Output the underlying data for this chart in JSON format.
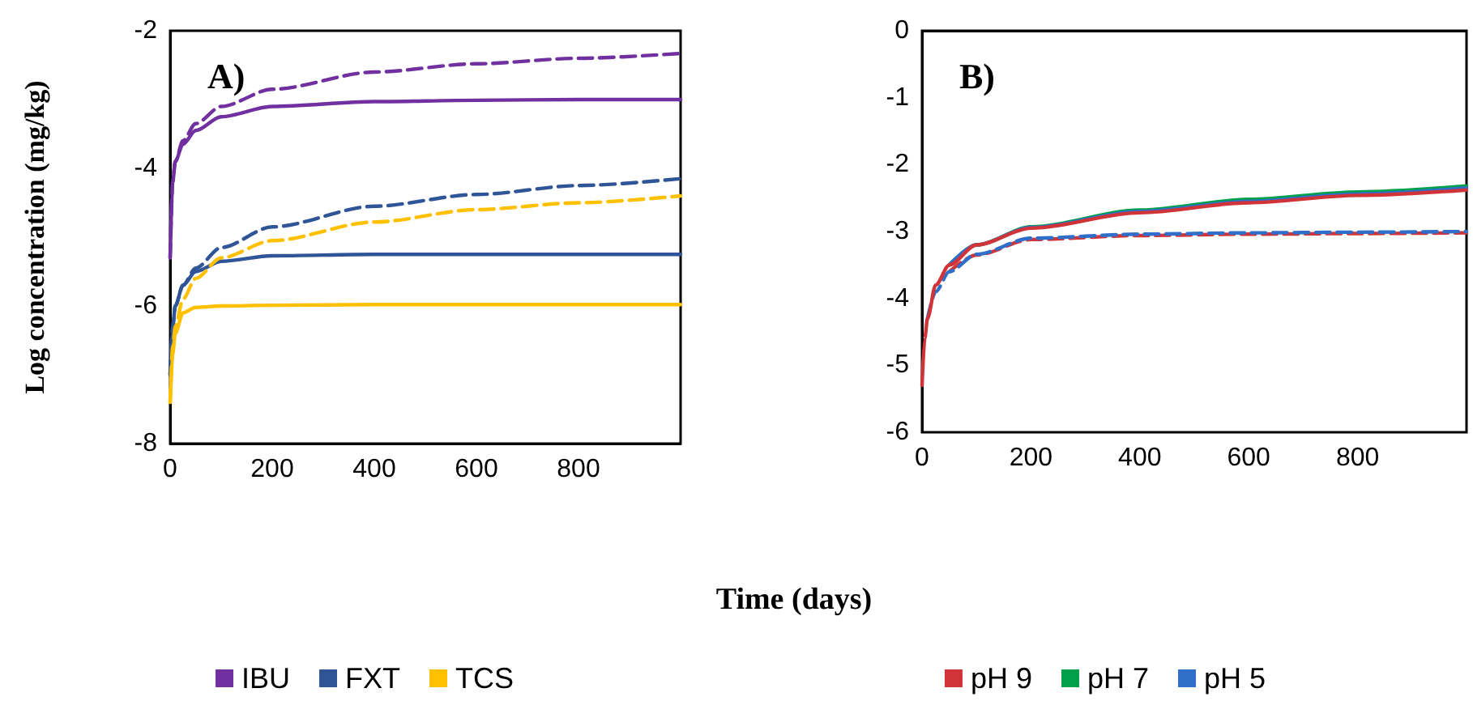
{
  "chart_data": [
    {
      "type": "line",
      "title": "A)",
      "xlabel": "Time (days)",
      "ylabel": "Log concentration (mg/kg)",
      "xlim": [
        0,
        1000
      ],
      "xticks": [
        0,
        200,
        400,
        600,
        800
      ],
      "ylim": [
        -8,
        -2
      ],
      "yticks": [
        -8,
        -6,
        -4,
        -2
      ],
      "grid": false,
      "legend": "bottom",
      "marker": "none",
      "series": [
        {
          "name": "IBU",
          "color": "#7030a0",
          "line_style": "solid",
          "x": [
            0,
            5,
            10,
            25,
            50,
            100,
            200,
            400,
            600,
            800,
            1000
          ],
          "values": [
            -5.3,
            -4.2,
            -3.9,
            -3.65,
            -3.45,
            -3.25,
            -3.1,
            -3.03,
            -3.01,
            -3.0,
            -3.0
          ]
        },
        {
          "color": "#7030a0",
          "line_style": "dashed",
          "x": [
            0,
            5,
            10,
            25,
            50,
            100,
            200,
            400,
            600,
            800,
            1000
          ],
          "values": [
            -5.3,
            -4.2,
            -3.9,
            -3.6,
            -3.35,
            -3.1,
            -2.85,
            -2.6,
            -2.48,
            -2.4,
            -2.33
          ]
        },
        {
          "name": "FXT",
          "color": "#2f5597",
          "line_style": "solid",
          "x": [
            0,
            5,
            10,
            25,
            50,
            100,
            200,
            400,
            600,
            800,
            1000
          ],
          "values": [
            -7.0,
            -6.3,
            -6.0,
            -5.7,
            -5.5,
            -5.35,
            -5.27,
            -5.25,
            -5.25,
            -5.25,
            -5.25
          ]
        },
        {
          "color": "#2f5597",
          "line_style": "dashed",
          "x": [
            0,
            5,
            10,
            25,
            50,
            100,
            200,
            400,
            600,
            800,
            1000
          ],
          "values": [
            -7.0,
            -6.3,
            -6.0,
            -5.7,
            -5.45,
            -5.15,
            -4.85,
            -4.55,
            -4.38,
            -4.25,
            -4.15
          ]
        },
        {
          "name": "TCS",
          "color": "#ffc000",
          "line_style": "solid",
          "x": [
            0,
            5,
            10,
            25,
            50,
            100,
            200,
            400,
            600,
            800,
            1000
          ],
          "values": [
            -7.4,
            -6.7,
            -6.4,
            -6.1,
            -6.02,
            -6.0,
            -5.99,
            -5.98,
            -5.98,
            -5.98,
            -5.98
          ]
        },
        {
          "color": "#ffc000",
          "line_style": "dashed",
          "x": [
            0,
            5,
            10,
            25,
            50,
            100,
            200,
            400,
            600,
            800,
            1000
          ],
          "values": [
            -7.4,
            -6.6,
            -6.3,
            -5.9,
            -5.6,
            -5.3,
            -5.05,
            -4.78,
            -4.6,
            -4.5,
            -4.4
          ]
        }
      ]
    },
    {
      "type": "line",
      "title": "B)",
      "xlim": [
        0,
        1000
      ],
      "xticks": [
        0,
        200,
        400,
        600,
        800
      ],
      "ylim": [
        -6,
        0
      ],
      "yticks": [
        -6,
        -5,
        -4,
        -3,
        -2,
        -1,
        0
      ],
      "grid": false,
      "legend": "bottom",
      "marker": "none",
      "series": [
        {
          "name": "pH 9",
          "color": "#d13438",
          "line_style": "solid",
          "x": [
            0,
            5,
            10,
            25,
            50,
            100,
            200,
            400,
            600,
            800,
            1000
          ],
          "values": [
            -5.3,
            -4.6,
            -4.3,
            -3.8,
            -3.5,
            -3.2,
            -2.95,
            -2.72,
            -2.57,
            -2.46,
            -2.38
          ]
        },
        {
          "name": "pH 7",
          "color": "#00a04a",
          "line_style": "solid",
          "x": [
            50,
            100,
            200,
            400,
            600,
            800,
            1000
          ],
          "values": [
            -3.5,
            -3.2,
            -2.93,
            -2.68,
            -2.52,
            -2.41,
            -2.32
          ]
        },
        {
          "name": "pH 5",
          "color": "#2f6fc9",
          "line_style": "solid",
          "x": [
            50,
            100,
            200,
            400,
            600,
            800,
            1000
          ],
          "values": [
            -3.5,
            -3.2,
            -2.94,
            -2.7,
            -2.55,
            -2.44,
            -2.35
          ]
        },
        {
          "color": "#d13438",
          "line_style": "dashed",
          "x": [
            50,
            100,
            200,
            400,
            600,
            800,
            1000
          ],
          "values": [
            -3.6,
            -3.35,
            -3.12,
            -3.06,
            -3.04,
            -3.03,
            -3.02
          ]
        },
        {
          "color": "#2f6fc9",
          "line_style": "dashed",
          "x": [
            10,
            25,
            50,
            100,
            200,
            400,
            600,
            800,
            1000
          ],
          "values": [
            -4.3,
            -3.9,
            -3.6,
            -3.34,
            -3.1,
            -3.04,
            -3.02,
            -3.01,
            -3.0
          ]
        }
      ]
    }
  ]
}
